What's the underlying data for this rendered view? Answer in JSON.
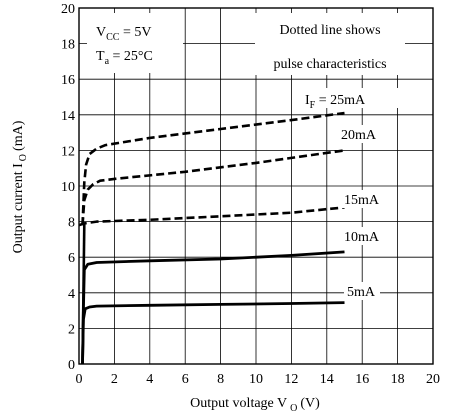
{
  "chart_data": {
    "type": "line",
    "xlabel": {
      "main": "Output voltage V",
      "sub": "O",
      "unit": "(V)"
    },
    "ylabel": {
      "main": "Output current I",
      "sub": "O",
      "unit": "(mA)"
    },
    "xlim": [
      0,
      20
    ],
    "ylim": [
      0,
      20
    ],
    "x_ticks": [
      0,
      2,
      4,
      6,
      8,
      10,
      12,
      14,
      16,
      18,
      20
    ],
    "y_ticks": [
      0,
      2,
      4,
      6,
      8,
      10,
      12,
      14,
      16,
      18,
      20
    ],
    "grid": true,
    "conditions": {
      "vcc": {
        "main": "V",
        "sub": "CC",
        "rest": " = 5V"
      },
      "ta": {
        "main": "T",
        "sub": "a",
        "rest": " = 25°C"
      }
    },
    "note_lines": [
      "Dotted line shows",
      "pulse characteristics"
    ],
    "series": [
      {
        "name": "25mA",
        "label_prefix": "I",
        "label_sub": "F",
        "label_rest": " = 25mA",
        "style": "dashed",
        "points": [
          [
            0.2,
            7.8
          ],
          [
            0.3,
            10.2
          ],
          [
            0.4,
            11.2
          ],
          [
            0.6,
            11.8
          ],
          [
            1.0,
            12.1
          ],
          [
            1.5,
            12.3
          ],
          [
            4,
            12.7
          ],
          [
            8,
            13.2
          ],
          [
            12,
            13.7
          ],
          [
            15,
            14.1
          ]
        ]
      },
      {
        "name": "20mA",
        "label": "20mA",
        "style": "dashed",
        "points": [
          [
            0.2,
            7.8
          ],
          [
            0.3,
            9.2
          ],
          [
            0.5,
            9.8
          ],
          [
            0.8,
            10.1
          ],
          [
            1.2,
            10.3
          ],
          [
            2,
            10.4
          ],
          [
            6,
            10.8
          ],
          [
            10,
            11.3
          ],
          [
            15,
            12.0
          ]
        ]
      },
      {
        "name": "15mA",
        "label": "15mA",
        "style": "dashed",
        "points": [
          [
            0,
            7.8
          ],
          [
            0.3,
            7.9
          ],
          [
            1,
            8.0
          ],
          [
            4,
            8.1
          ],
          [
            8,
            8.3
          ],
          [
            12,
            8.5
          ],
          [
            15,
            8.8
          ]
        ]
      },
      {
        "name": "10mA",
        "label": "10mA",
        "style": "solid",
        "points": [
          [
            0.2,
            0
          ],
          [
            0.25,
            3
          ],
          [
            0.3,
            5.3
          ],
          [
            0.5,
            5.6
          ],
          [
            1,
            5.7
          ],
          [
            4,
            5.8
          ],
          [
            8,
            5.9
          ],
          [
            12,
            6.1
          ],
          [
            15,
            6.3
          ]
        ]
      },
      {
        "name": "5mA",
        "label": "5mA",
        "style": "solid",
        "points": [
          [
            0.2,
            0
          ],
          [
            0.25,
            2.5
          ],
          [
            0.35,
            3.1
          ],
          [
            0.6,
            3.2
          ],
          [
            1,
            3.25
          ],
          [
            4,
            3.3
          ],
          [
            8,
            3.35
          ],
          [
            12,
            3.4
          ],
          [
            15,
            3.45
          ]
        ]
      }
    ]
  }
}
